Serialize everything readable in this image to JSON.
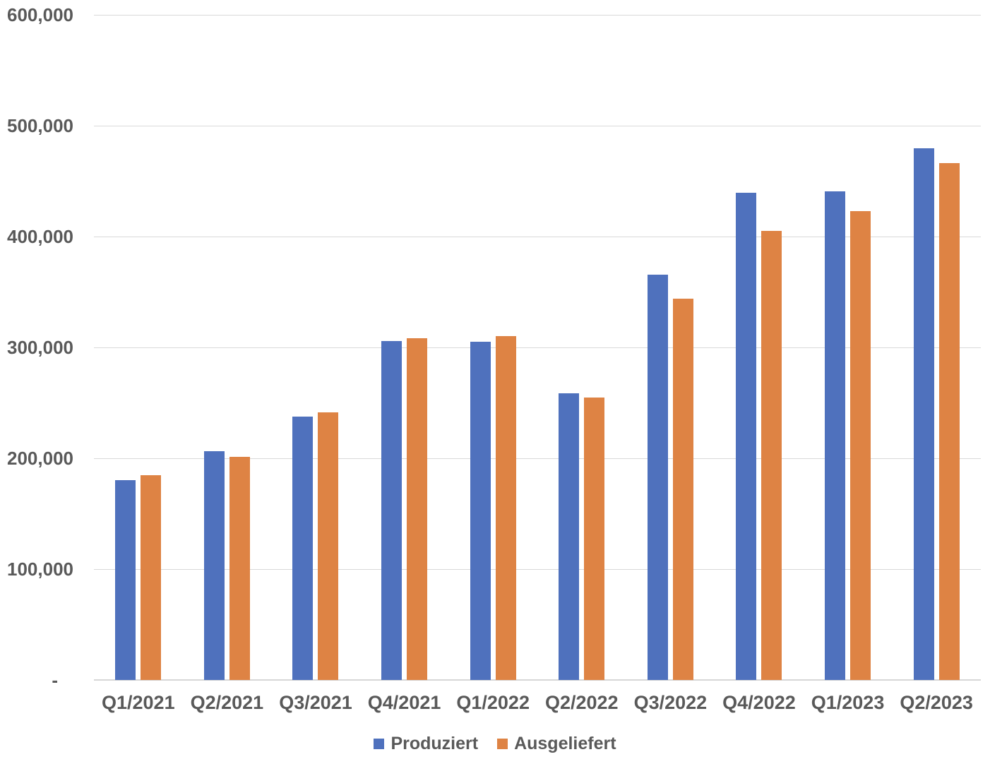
{
  "chart_data": {
    "type": "bar",
    "title": "",
    "xlabel": "",
    "ylabel": "",
    "categories": [
      "Q1/2021",
      "Q2/2021",
      "Q3/2021",
      "Q4/2021",
      "Q1/2022",
      "Q2/2022",
      "Q3/2022",
      "Q4/2022",
      "Q1/2023",
      "Q2/2023"
    ],
    "series": [
      {
        "name": "Produziert",
        "color": "#4F71BD",
        "values": [
          180338,
          206421,
          237823,
          305840,
          305407,
          258580,
          365923,
          439701,
          440808,
          479700
        ]
      },
      {
        "name": "Ausgeliefert",
        "color": "#DE8344",
        "values": [
          184800,
          201250,
          241300,
          308600,
          310048,
          254695,
          343830,
          405278,
          422875,
          466140
        ]
      }
    ],
    "ylim": [
      0,
      600000
    ],
    "y_tick_step": 100000,
    "y_ticks": [
      {
        "value": 0,
        "label": "-"
      },
      {
        "value": 100000,
        "label": "100,000"
      },
      {
        "value": 200000,
        "label": "200,000"
      },
      {
        "value": 300000,
        "label": "300,000"
      },
      {
        "value": 400000,
        "label": "400,000"
      },
      {
        "value": 500000,
        "label": "500,000"
      },
      {
        "value": 600000,
        "label": "600,000"
      }
    ],
    "grid": "horizontal",
    "gridline_color": "#D9D9D9",
    "axis_line_color": "#D6D6D6",
    "text_color": "#595959",
    "legend_position": "bottom"
  }
}
